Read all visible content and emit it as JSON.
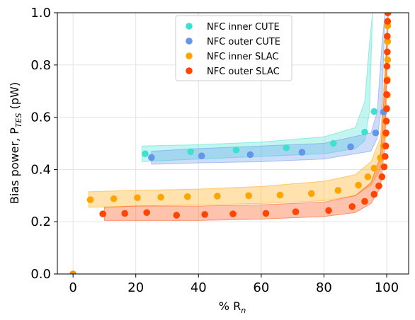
{
  "chart_data": {
    "type": "scatter",
    "xlabel_main": "% R",
    "xlabel_sub": "n",
    "ylabel_main": "Bias power, P",
    "ylabel_sub": "TES",
    "ylabel_unit": " (pW)",
    "xlim": [
      -5,
      107
    ],
    "ylim": [
      0,
      1.0
    ],
    "xticks": [
      0,
      20,
      40,
      60,
      80,
      100
    ],
    "yticks": [
      0.0,
      0.2,
      0.4,
      0.6,
      0.8,
      1.0
    ],
    "xtick_labels": [
      "0",
      "20",
      "40",
      "60",
      "80",
      "100"
    ],
    "ytick_labels": [
      "0.0",
      "0.2",
      "0.4",
      "0.6",
      "0.8",
      "1.0"
    ],
    "grid": true,
    "legend_position": "top-center",
    "series": [
      {
        "name": "NFC inner CUTE",
        "color": "#40e0d0",
        "x": [
          23,
          37.5,
          52,
          68,
          83,
          93,
          96
        ],
        "y": [
          0.46,
          0.468,
          0.475,
          0.483,
          0.5,
          0.543,
          0.622
        ],
        "band_x": [
          22,
          40,
          60,
          80,
          90,
          93,
          94.5,
          95.5
        ],
        "band_low": [
          0.43,
          0.44,
          0.45,
          0.46,
          0.48,
          0.51,
          0.62,
          1.0
        ],
        "band_high": [
          0.49,
          0.495,
          0.505,
          0.525,
          0.56,
          0.66,
          0.88,
          1.0
        ]
      },
      {
        "name": "NFC outer CUTE",
        "color": "#6495ed",
        "x": [
          25,
          41,
          56.5,
          73,
          88.5,
          96.5,
          99
        ],
        "y": [
          0.446,
          0.452,
          0.457,
          0.466,
          0.487,
          0.54,
          0.62
        ],
        "band_x": [
          25,
          40,
          60,
          80,
          95,
          97,
          98.5,
          99.5
        ],
        "band_low": [
          0.42,
          0.425,
          0.43,
          0.44,
          0.47,
          0.52,
          0.65,
          1.0
        ],
        "band_high": [
          0.47,
          0.48,
          0.49,
          0.5,
          0.54,
          0.62,
          0.88,
          1.0
        ]
      },
      {
        "name": "NFC inner SLAC",
        "color": "#ffa500",
        "x": [
          5.5,
          13,
          20.5,
          28,
          36.5,
          46,
          56,
          66,
          76,
          84.5,
          91,
          94,
          96,
          98,
          99,
          99.5,
          99.8,
          100,
          100.2,
          100.2,
          100.3,
          100.3,
          100.3
        ],
        "y": [
          0.284,
          0.288,
          0.292,
          0.294,
          0.296,
          0.298,
          0.3,
          0.302,
          0.308,
          0.32,
          0.34,
          0.372,
          0.405,
          0.445,
          0.49,
          0.535,
          0.585,
          0.635,
          0.685,
          0.745,
          0.82,
          0.89,
          0.95
        ],
        "band_x": [
          5,
          20,
          40,
          60,
          80,
          90,
          95,
          98,
          99.5,
          100.3
        ],
        "band_low": [
          0.255,
          0.26,
          0.265,
          0.27,
          0.28,
          0.3,
          0.34,
          0.4,
          0.55,
          1.0
        ],
        "band_high": [
          0.315,
          0.32,
          0.325,
          0.335,
          0.355,
          0.38,
          0.43,
          0.52,
          0.8,
          1.0
        ]
      },
      {
        "name": "NFC outer SLAC",
        "color": "#ff4500",
        "x": [
          9.5,
          16.5,
          23.5,
          33,
          42,
          51,
          61.5,
          71,
          81.5,
          89,
          93,
          96,
          97.5,
          98.5,
          99.2,
          99.5,
          99.7,
          99.8,
          99.9,
          100,
          100,
          100.1,
          100.1,
          100.2,
          100.2,
          100.3,
          100.3,
          100.4
        ],
        "y": [
          0.23,
          0.232,
          0.235,
          0.225,
          0.228,
          0.23,
          0.232,
          0.238,
          0.243,
          0.258,
          0.278,
          0.305,
          0.337,
          0.372,
          0.41,
          0.45,
          0.49,
          0.54,
          0.585,
          0.632,
          0.687,
          0.74,
          0.795,
          0.85,
          0.91,
          0.967,
          1.0,
          1.0
        ],
        "band_x": [
          10,
          20,
          40,
          60,
          80,
          90,
          95,
          98,
          99.5,
          100.5
        ],
        "band_low": [
          0.205,
          0.205,
          0.205,
          0.21,
          0.22,
          0.235,
          0.27,
          0.33,
          0.5,
          1.0
        ],
        "band_high": [
          0.255,
          0.26,
          0.26,
          0.265,
          0.275,
          0.3,
          0.35,
          0.45,
          0.75,
          1.0
        ]
      }
    ],
    "extra_points": [
      {
        "color": "#ff8c00",
        "x": 0,
        "y": 0.0
      }
    ]
  }
}
